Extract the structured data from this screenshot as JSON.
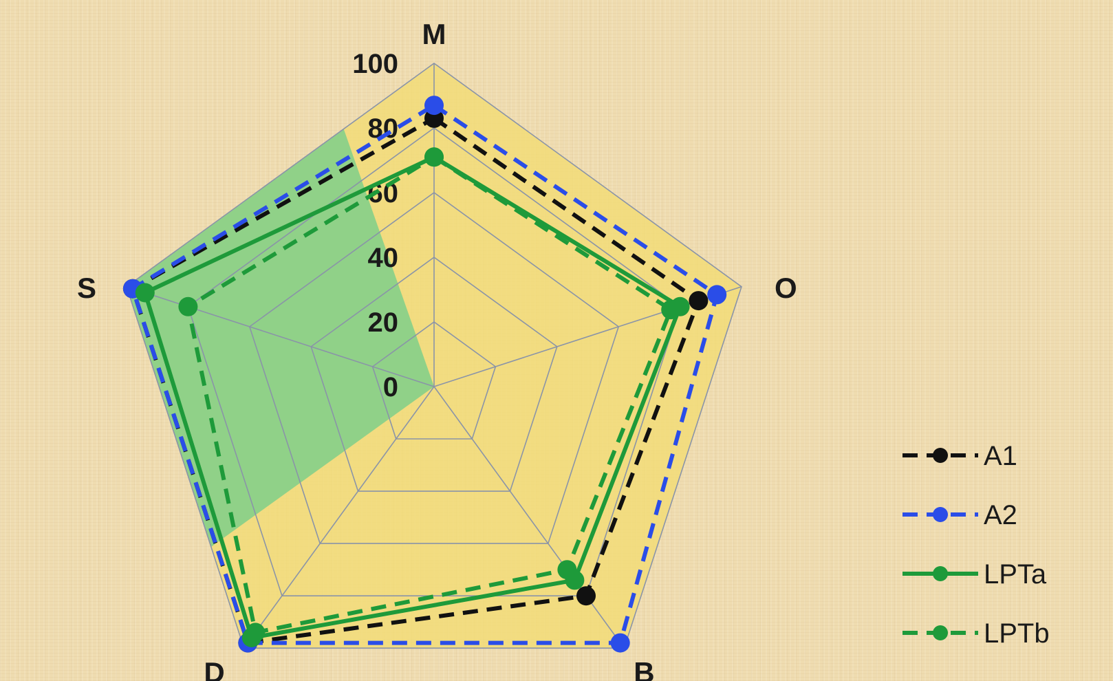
{
  "chart_data": {
    "type": "radar",
    "axes": [
      "M",
      "O",
      "B",
      "D",
      "S"
    ],
    "r_ticks": [
      "0",
      "20",
      "40",
      "60",
      "80",
      "100"
    ],
    "rlim": [
      0,
      100
    ],
    "series": [
      {
        "name": "A1",
        "values": [
          83,
          86,
          80,
          98,
          98
        ],
        "color": "#111111",
        "dash": "dashed"
      },
      {
        "name": "A2",
        "values": [
          87,
          92,
          98,
          98,
          98
        ],
        "color": "#2a4de8",
        "dash": "dashed"
      },
      {
        "name": "LPTa",
        "values": [
          71,
          80,
          74,
          96,
          94
        ],
        "color": "#1e9a3a",
        "dash": "solid"
      },
      {
        "name": "LPTb",
        "values": [
          71,
          77,
          70,
          94,
          80
        ],
        "color": "#1e9a3a",
        "dash": "dashed"
      }
    ],
    "legend_position": "bottom-right",
    "colors": {
      "plot_fill": "#f2dc78",
      "highlight_fill": "#7fcf8a",
      "grid": "#8a94a8"
    }
  }
}
